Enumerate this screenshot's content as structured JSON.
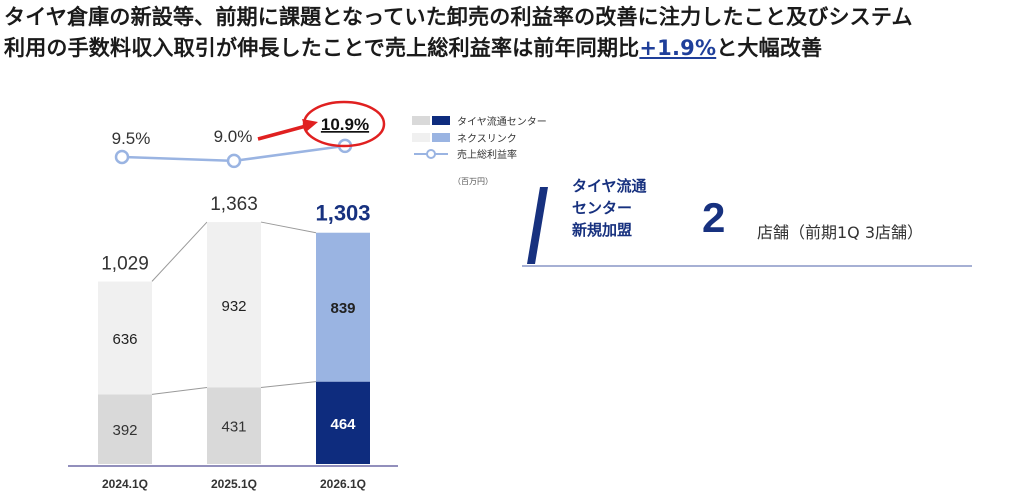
{
  "headline": {
    "line1": "タイヤ倉庫の新設等、前期に課題となっていた卸売の利益率の改善に注力したこと及びシステム",
    "line2_before": "利用の手数料収入取引が伸長したことで売上総利益率は前年同期比",
    "line2_change": "+1.9%",
    "line2_after": "と大幅改善"
  },
  "chart_data": {
    "type": "bar",
    "stacked": true,
    "categories": [
      "2024.1Q",
      "2025.1Q",
      "2026.1Q"
    ],
    "series": [
      {
        "name": "タイヤ流通センター",
        "values": [
          392,
          431,
          464
        ]
      },
      {
        "name": "ネクスリンク",
        "values": [
          636,
          932,
          839
        ]
      }
    ],
    "totals": [
      1029,
      1363,
      1303
    ],
    "line_series": {
      "name": "売上総利益率",
      "values": [
        9.5,
        9.0,
        10.9
      ]
    },
    "value_labels": {
      "segment1": [
        "392",
        "431",
        "464"
      ],
      "segment2": [
        "636",
        "932",
        "839"
      ],
      "totals": [
        "1,029",
        "1,363",
        "1,303"
      ],
      "margin": [
        "9.5%",
        "9.0%",
        "10.9%"
      ]
    },
    "unit": "（百万円）",
    "legend_position": "top-right",
    "colors": {
      "segment1": [
        "#d9d9d9",
        "#d9d9d9",
        "#0e2c7e"
      ],
      "segment2": [
        "#f0f0f0",
        "#f0f0f0",
        "#9ab4e2"
      ],
      "line": "#9ab4e2",
      "axis": "#6f6aa6",
      "highlight_circle": "#e02020",
      "arrow": "#e02020",
      "highlight_total": "#17317f"
    },
    "ylim": [
      0,
      1450
    ],
    "margin_ylim": [
      6,
      12
    ]
  },
  "panel": {
    "title_lines": [
      "タイヤ流通",
      "センター",
      "新規加盟"
    ],
    "value": "2",
    "unit_text": "店舗（前期1Q 3店舗）"
  }
}
